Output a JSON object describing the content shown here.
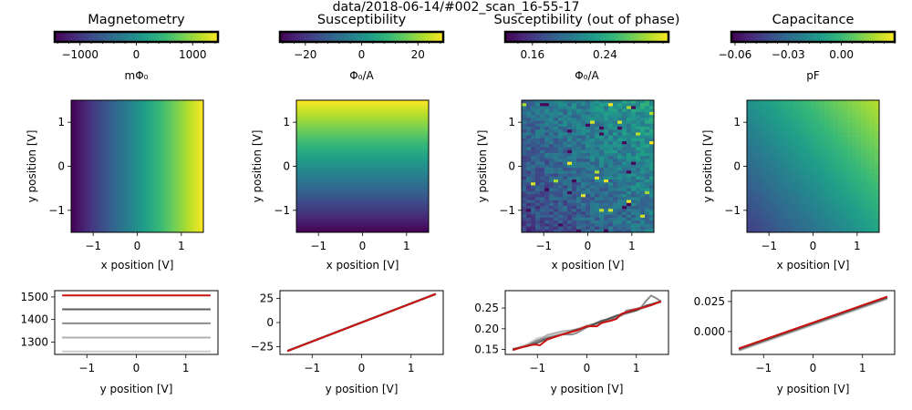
{
  "figure_title": "data/2018-06-14/#002_scan_16-55-17",
  "colors": {
    "viridis": [
      "#440154",
      "#482878",
      "#3e4a89",
      "#31688e",
      "#26828e",
      "#1f9e89",
      "#35b779",
      "#6ece58",
      "#b5de2b",
      "#fde725"
    ],
    "highlight_line": "#cc1111",
    "gray_lines": [
      "#c8c8c8",
      "#a6a6a6",
      "#808080",
      "#4d4d4d"
    ]
  },
  "chart_data": [
    {
      "id": "magnetometry",
      "title": "Magnetometry",
      "type": "heatmap",
      "colorbar": {
        "min": -1450,
        "max": 1450,
        "ticks": [
          -1000,
          0,
          1000
        ],
        "tick_labels": [
          "−1000",
          "0",
          "1000"
        ],
        "label": "mΦ₀"
      },
      "map": {
        "kind": "x_gradient",
        "xlim": [
          -1.5,
          1.5
        ],
        "ylim": [
          -1.5,
          1.5
        ]
      },
      "xlabel": "x position [V]",
      "ylabel": "y position [V]",
      "xticks": [
        -1,
        0,
        1
      ],
      "xtick_labels": [
        "−1",
        "0",
        "1"
      ],
      "yticks": [
        -1,
        0,
        1
      ],
      "ytick_labels": [
        "−1",
        "0",
        "1"
      ],
      "linecut": {
        "type": "line",
        "xlabel": "y position [V]",
        "xlim": [
          -1.65,
          1.65
        ],
        "ylim": [
          1245,
          1528
        ],
        "xticks": [
          -1,
          0,
          1
        ],
        "xtick_labels": [
          "−1",
          "0",
          "1"
        ],
        "yticks": [
          1300,
          1400,
          1500
        ],
        "ytick_labels": [
          "1300",
          "1400",
          "1500"
        ],
        "gray_series": [
          {
            "x": [
              -1.5,
              1.5
            ],
            "y": [
              1258,
              1258
            ]
          },
          {
            "x": [
              -1.5,
              1.5
            ],
            "y": [
              1320,
              1320
            ]
          },
          {
            "x": [
              -1.5,
              1.5
            ],
            "y": [
              1383,
              1383
            ]
          },
          {
            "x": [
              -1.5,
              1.5
            ],
            "y": [
              1445,
              1445
            ]
          }
        ],
        "highlight_series": {
          "x": [
            -1.5,
            1.5
          ],
          "y": [
            1507,
            1507
          ]
        }
      }
    },
    {
      "id": "susceptibility",
      "title": "Susceptibility",
      "type": "heatmap",
      "colorbar": {
        "min": -29,
        "max": 29,
        "ticks": [
          -20,
          0,
          20
        ],
        "tick_labels": [
          "−20",
          "0",
          "20"
        ],
        "label": "Φ₀/A"
      },
      "map": {
        "kind": "y_gradient",
        "xlim": [
          -1.5,
          1.5
        ],
        "ylim": [
          -1.5,
          1.5
        ]
      },
      "xlabel": "x position [V]",
      "ylabel": "y position [V]",
      "xticks": [
        -1,
        0,
        1
      ],
      "xtick_labels": [
        "−1",
        "0",
        "1"
      ],
      "yticks": [
        -1,
        0,
        1
      ],
      "ytick_labels": [
        "−1",
        "0",
        "1"
      ],
      "linecut": {
        "type": "line",
        "xlabel": "y position [V]",
        "xlim": [
          -1.65,
          1.65
        ],
        "ylim": [
          -33,
          33
        ],
        "xticks": [
          -1,
          0,
          1
        ],
        "xtick_labels": [
          "−1",
          "0",
          "1"
        ],
        "yticks": [
          -25,
          0,
          25
        ],
        "ytick_labels": [
          "−25",
          "0",
          "25"
        ],
        "gray_series": [
          {
            "x": [
              -1.5,
              1.5
            ],
            "y": [
              -29.5,
              29.5
            ]
          },
          {
            "x": [
              -1.5,
              1.5
            ],
            "y": [
              -29.3,
              29.7
            ]
          },
          {
            "x": [
              -1.5,
              1.5
            ],
            "y": [
              -29.1,
              29.9
            ]
          },
          {
            "x": [
              -1.5,
              1.5
            ],
            "y": [
              -29.6,
              29.4
            ]
          }
        ],
        "highlight_series": {
          "x": [
            -1.5,
            1.5
          ],
          "y": [
            -29.5,
            29.5
          ]
        }
      }
    },
    {
      "id": "susceptibility_oop",
      "title": "Susceptibility (out of phase)",
      "type": "heatmap",
      "colorbar": {
        "min": 0.13,
        "max": 0.31,
        "ticks": [
          0.16,
          0.24
        ],
        "tick_labels": [
          "0.16",
          "0.24"
        ],
        "label": "Φ₀/A"
      },
      "map": {
        "kind": "noisy_diagonal",
        "xlim": [
          -1.5,
          1.5
        ],
        "ylim": [
          -1.5,
          1.5
        ]
      },
      "xlabel": "x position [V]",
      "ylabel": "y position [V]",
      "xticks": [
        -1,
        0,
        1
      ],
      "xtick_labels": [
        "−1",
        "0",
        "1"
      ],
      "yticks": [
        -1,
        0,
        1
      ],
      "ytick_labels": [
        "−1",
        "0",
        "1"
      ],
      "linecut": {
        "type": "line",
        "xlabel": "y position [V]",
        "xlim": [
          -1.65,
          1.65
        ],
        "ylim": [
          0.138,
          0.292
        ],
        "xticks": [
          -1,
          0,
          1
        ],
        "xtick_labels": [
          "−1",
          "0",
          "1"
        ],
        "yticks": [
          0.15,
          0.2,
          0.25
        ],
        "ytick_labels": [
          "0.15",
          "0.20",
          "0.25"
        ],
        "gray_series": [
          {
            "x": [
              -1.5,
              -1.2,
              -1.0,
              -0.8,
              -0.5,
              -0.2,
              0.0,
              0.3,
              0.6,
              0.8,
              1.0,
              1.2,
              1.5
            ],
            "y": [
              0.15,
              0.163,
              0.177,
              0.182,
              0.19,
              0.2,
              0.205,
              0.214,
              0.228,
              0.236,
              0.244,
              0.252,
              0.266
            ]
          },
          {
            "x": [
              -1.5,
              -1.2,
              -1.0,
              -0.8,
              -0.5,
              -0.2,
              0.0,
              0.3,
              0.6,
              0.8,
              1.0,
              1.2,
              1.5
            ],
            "y": [
              0.149,
              0.16,
              0.17,
              0.185,
              0.194,
              0.198,
              0.208,
              0.216,
              0.23,
              0.24,
              0.246,
              0.254,
              0.268
            ]
          },
          {
            "x": [
              -1.5,
              -1.2,
              -1.0,
              -0.8,
              -0.5,
              -0.3,
              -0.2,
              0.0,
              0.3,
              0.5,
              0.7,
              0.8,
              1.0,
              1.1,
              1.2,
              1.3,
              1.4,
              1.5
            ],
            "y": [
              0.148,
              0.16,
              0.172,
              0.178,
              0.186,
              0.186,
              0.19,
              0.204,
              0.22,
              0.224,
              0.232,
              0.244,
              0.248,
              0.252,
              0.268,
              0.28,
              0.274,
              0.266
            ]
          },
          {
            "x": [
              -1.5,
              -1.2,
              -1.0,
              -0.8,
              -0.5,
              -0.2,
              0.0,
              0.3,
              0.6,
              0.8,
              1.0,
              1.2,
              1.5
            ],
            "y": [
              0.151,
              0.158,
              0.166,
              0.176,
              0.186,
              0.198,
              0.204,
              0.218,
              0.232,
              0.238,
              0.244,
              0.256,
              0.265
            ]
          }
        ],
        "highlight_series": {
          "x": [
            -1.5,
            -1.2,
            -1.05,
            -0.95,
            -0.8,
            -0.5,
            -0.2,
            0.0,
            0.2,
            0.3,
            0.5,
            0.6,
            0.7,
            0.9,
            1.1,
            1.3,
            1.5
          ],
          "y": [
            0.149,
            0.159,
            0.162,
            0.16,
            0.174,
            0.186,
            0.196,
            0.206,
            0.206,
            0.214,
            0.22,
            0.224,
            0.236,
            0.244,
            0.25,
            0.257,
            0.266
          ]
        }
      }
    },
    {
      "id": "capacitance",
      "title": "Capacitance",
      "type": "heatmap",
      "colorbar": {
        "min": -0.062,
        "max": 0.03,
        "ticks": [
          -0.06,
          -0.03,
          0.0
        ],
        "tick_labels": [
          "−0.06",
          "−0.03",
          "0.00"
        ],
        "label": "pF"
      },
      "map": {
        "kind": "diagonal",
        "xlim": [
          -1.5,
          1.5
        ],
        "ylim": [
          -1.5,
          1.5
        ]
      },
      "xlabel": "x position [V]",
      "ylabel": "y position [V]",
      "xticks": [
        -1,
        0,
        1
      ],
      "xtick_labels": [
        "−1",
        "0",
        "1"
      ],
      "yticks": [
        -1,
        0,
        1
      ],
      "ytick_labels": [
        "−1",
        "0",
        "1"
      ],
      "linecut": {
        "type": "line",
        "xlabel": "y position [V]",
        "xlim": [
          -1.65,
          1.65
        ],
        "ylim": [
          -0.019,
          0.034
        ],
        "xticks": [
          -1,
          0,
          1
        ],
        "xtick_labels": [
          "−1",
          "0",
          "1"
        ],
        "yticks": [
          0.0,
          0.025
        ],
        "ytick_labels": [
          "0.000",
          "0.025"
        ],
        "gray_series": [
          {
            "x": [
              -1.5,
              1.5
            ],
            "y": [
              -0.016,
              0.027
            ]
          },
          {
            "x": [
              -1.5,
              1.5
            ],
            "y": [
              -0.0155,
              0.0275
            ]
          },
          {
            "x": [
              -1.5,
              1.5
            ],
            "y": [
              -0.015,
              0.028
            ]
          },
          {
            "x": [
              -1.5,
              1.5
            ],
            "y": [
              -0.0145,
              0.0285
            ]
          }
        ],
        "highlight_series": {
          "x": [
            -1.5,
            1.5
          ],
          "y": [
            -0.014,
            0.029
          ]
        }
      }
    }
  ]
}
